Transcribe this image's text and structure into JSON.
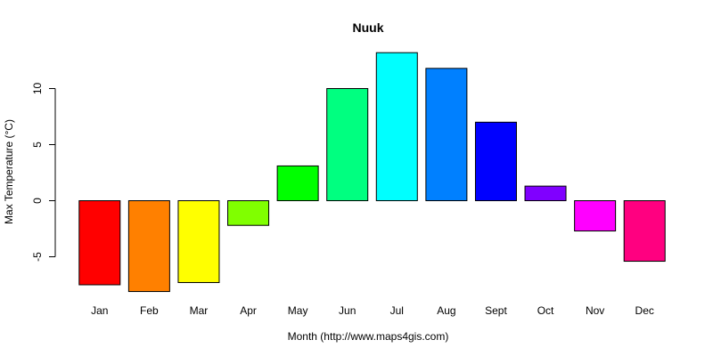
{
  "chart_data": {
    "type": "bar",
    "title": "Nuuk",
    "xlabel": "Month (http://www.maps4gis.com)",
    "ylabel": "Max Temperature (°C)",
    "categories": [
      "Jan",
      "Feb",
      "Mar",
      "Apr",
      "May",
      "Jun",
      "Jul",
      "Aug",
      "Sept",
      "Oct",
      "Nov",
      "Dec"
    ],
    "values": [
      -7.5,
      -8.1,
      -7.3,
      -2.2,
      3.1,
      10.0,
      13.2,
      11.8,
      7.0,
      1.3,
      -2.7,
      -5.4
    ],
    "colors": [
      "#FF0000",
      "#FF8000",
      "#FFFF00",
      "#80FF00",
      "#00FF00",
      "#00FF80",
      "#00FFFF",
      "#0080FF",
      "#0000FF",
      "#8000FF",
      "#FF00FF",
      "#FF0080"
    ],
    "yticks": [
      -5,
      0,
      5,
      10
    ],
    "ylim": [
      -8.1,
      13.2
    ],
    "grid": false,
    "legend": "none"
  }
}
